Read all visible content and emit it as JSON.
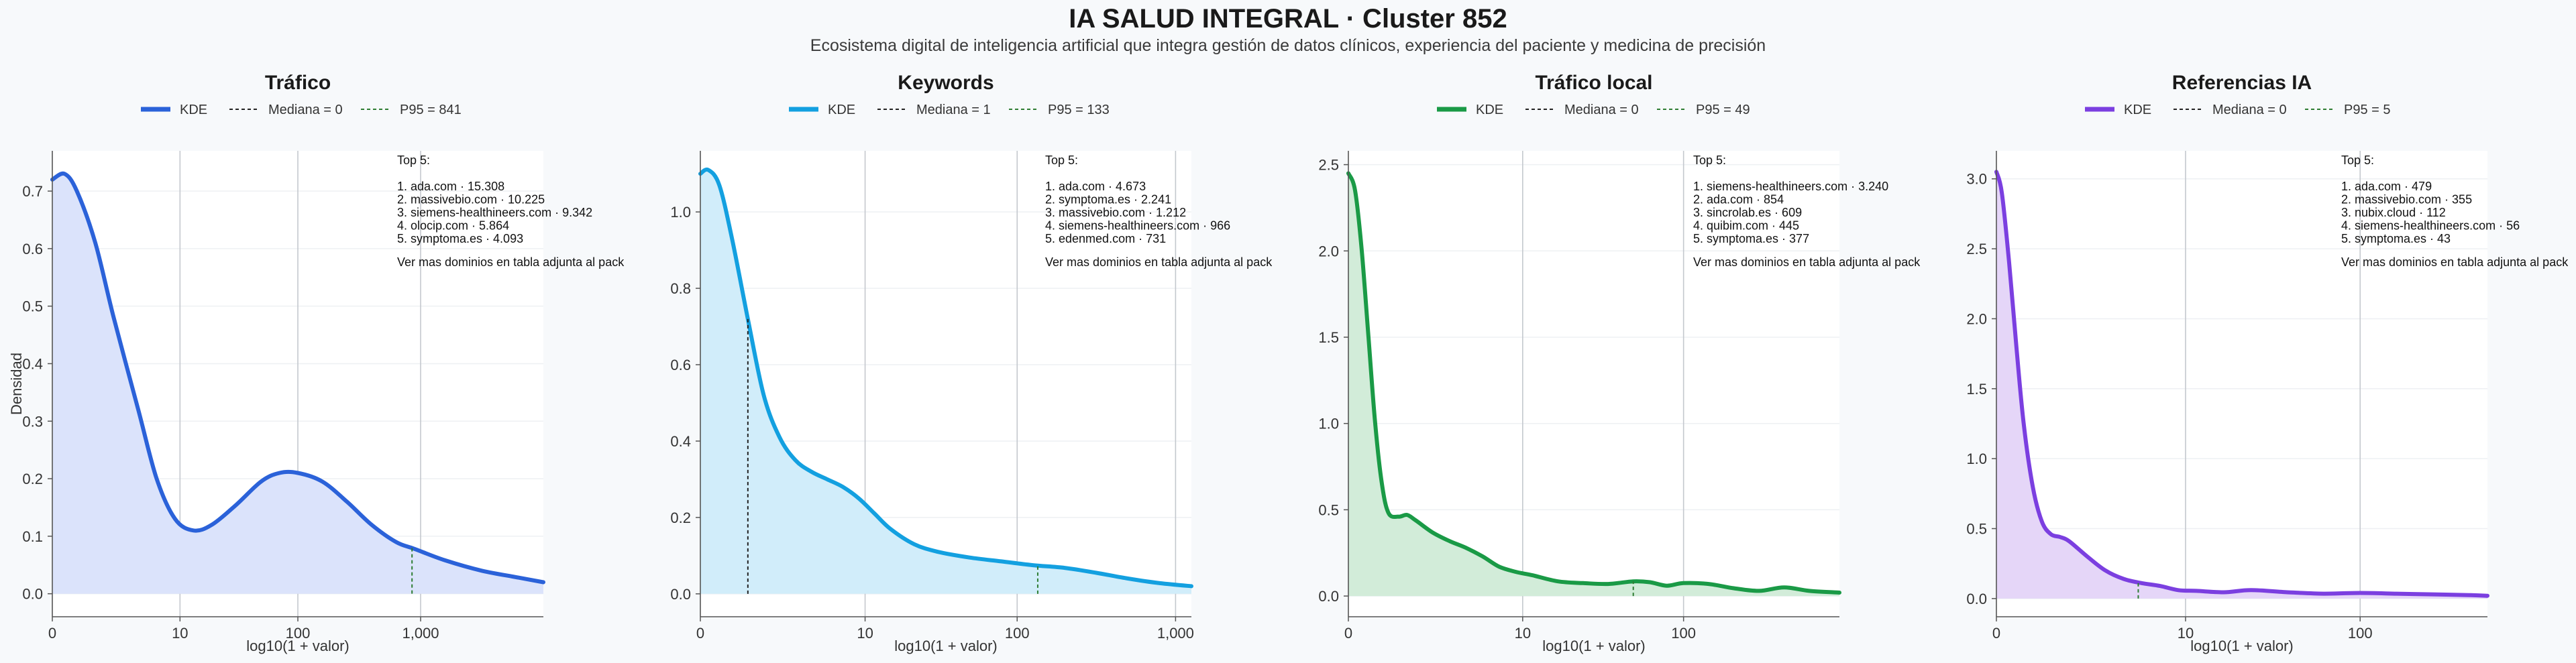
{
  "title": "IA SALUD INTEGRAL · Cluster 852",
  "subtitle": "Ecosistema digital de inteligencia artificial que integra gestión de datos clínicos, experiencia del paciente y medicina de precisión",
  "chart_data": [
    {
      "type": "area",
      "title": "Tráfico",
      "xlabel": "log10(1 + valor)",
      "ylabel": "Densidad",
      "color": "#2b62d9",
      "fill": "#dbe3fb",
      "x_scale": "log10(1 + valor)",
      "xlim": [
        0,
        4.0
      ],
      "ylim": [
        -0.04,
        0.77
      ],
      "x_ticks": [
        {
          "label": "0",
          "value": 0
        },
        {
          "label": "10",
          "value": 1.04
        },
        {
          "label": "100",
          "value": 2.0
        },
        {
          "label": "1,000",
          "value": 3.0
        }
      ],
      "y_ticks": [
        0.0,
        0.1,
        0.2,
        0.3,
        0.4,
        0.5,
        0.6,
        0.7
      ],
      "y_tick_labels": [
        "0.0",
        "0.1",
        "0.2",
        "0.3",
        "0.4",
        "0.5",
        "0.6",
        "0.7"
      ],
      "series": [
        {
          "name": "KDE",
          "x": [
            0,
            0.1,
            0.2,
            0.35,
            0.5,
            0.7,
            0.85,
            1.0,
            1.15,
            1.3,
            1.5,
            1.7,
            1.85,
            2.0,
            2.2,
            2.4,
            2.6,
            2.8,
            2.95,
            3.2,
            3.5,
            3.8,
            4.0
          ],
          "y": [
            0.72,
            0.73,
            0.7,
            0.61,
            0.48,
            0.32,
            0.2,
            0.13,
            0.11,
            0.12,
            0.155,
            0.195,
            0.21,
            0.21,
            0.195,
            0.16,
            0.12,
            0.09,
            0.078,
            0.058,
            0.04,
            0.028,
            0.02
          ]
        }
      ],
      "median": {
        "label": "Mediana = 0",
        "x": 0
      },
      "p95": {
        "label": "P95 = 841",
        "x": 2.93
      },
      "legend": {
        "kde": "KDE",
        "median": "Mediana = 0",
        "p95": "P95 = 841"
      },
      "annotation": {
        "heading": "Top 5:",
        "items": [
          "1. ada.com · 15.308",
          "2. massivebio.com · 10.225",
          "3. siemens-healthineers.com · 9.342",
          "4. olocip.com · 5.864",
          "5. symptoma.es · 4.093"
        ],
        "footer": "Ver mas dominios en tabla adjunta al pack"
      }
    },
    {
      "type": "area",
      "title": "Keywords",
      "xlabel": "log10(1 + valor)",
      "ylabel": "",
      "color": "#13a0e0",
      "fill": "#d1edfa",
      "x_scale": "log10(1 + valor)",
      "xlim": [
        0,
        3.1
      ],
      "ylim": [
        -0.06,
        1.16
      ],
      "x_ticks": [
        {
          "label": "0",
          "value": 0
        },
        {
          "label": "10",
          "value": 1.04
        },
        {
          "label": "100",
          "value": 2.0
        },
        {
          "label": "1,000",
          "value": 3.0
        }
      ],
      "y_ticks": [
        0.0,
        0.2,
        0.4,
        0.6,
        0.8,
        1.0
      ],
      "y_tick_labels": [
        "0.0",
        "0.2",
        "0.4",
        "0.6",
        "0.8",
        "1.0"
      ],
      "series": [
        {
          "name": "KDE",
          "x": [
            0,
            0.05,
            0.12,
            0.2,
            0.3,
            0.4,
            0.5,
            0.6,
            0.7,
            0.8,
            0.9,
            1.0,
            1.1,
            1.2,
            1.35,
            1.5,
            1.7,
            1.9,
            2.1,
            2.3,
            2.5,
            2.7,
            2.9,
            3.1
          ],
          "y": [
            1.1,
            1.11,
            1.07,
            0.93,
            0.72,
            0.52,
            0.41,
            0.35,
            0.32,
            0.3,
            0.28,
            0.25,
            0.21,
            0.17,
            0.13,
            0.11,
            0.095,
            0.085,
            0.075,
            0.068,
            0.055,
            0.04,
            0.028,
            0.02
          ]
        }
      ],
      "median": {
        "label": "Mediana = 1",
        "x": 0.3
      },
      "p95": {
        "label": "P95 = 133",
        "x": 2.13
      },
      "legend": {
        "kde": "KDE",
        "median": "Mediana = 1",
        "p95": "P95 = 133"
      },
      "annotation": {
        "heading": "Top 5:",
        "items": [
          "1. ada.com · 4.673",
          "2. symptoma.es · 2.241",
          "3. massivebio.com · 1.212",
          "4. siemens-healthineers.com · 966",
          "5. edenmed.com · 731"
        ],
        "footer": "Ver mas dominios en tabla adjunta al pack"
      }
    },
    {
      "type": "area",
      "title": "Tráfico local",
      "xlabel": "log10(1 + valor)",
      "ylabel": "",
      "color": "#1a9a46",
      "fill": "#d2ecd9",
      "x_scale": "log10(1 + valor)",
      "xlim": [
        0,
        2.93
      ],
      "ylim": [
        -0.12,
        2.58
      ],
      "x_ticks": [
        {
          "label": "0",
          "value": 0
        },
        {
          "label": "10",
          "value": 1.04
        },
        {
          "label": "100",
          "value": 2.0
        }
      ],
      "y_ticks": [
        0.0,
        0.5,
        1.0,
        1.5,
        2.0,
        2.5
      ],
      "y_tick_labels": [
        "0.0",
        "0.5",
        "1.0",
        "1.5",
        "2.0",
        "2.5"
      ],
      "series": [
        {
          "name": "KDE",
          "x": [
            0,
            0.04,
            0.08,
            0.12,
            0.16,
            0.2,
            0.24,
            0.3,
            0.35,
            0.4,
            0.5,
            0.6,
            0.7,
            0.8,
            0.9,
            1.0,
            1.1,
            1.25,
            1.4,
            1.55,
            1.7,
            1.8,
            1.9,
            2.0,
            2.15,
            2.3,
            2.45,
            2.6,
            2.75,
            2.93
          ],
          "y": [
            2.45,
            2.35,
            2.0,
            1.5,
            1.0,
            0.65,
            0.48,
            0.46,
            0.47,
            0.44,
            0.37,
            0.32,
            0.28,
            0.23,
            0.17,
            0.14,
            0.12,
            0.085,
            0.075,
            0.07,
            0.085,
            0.08,
            0.06,
            0.075,
            0.07,
            0.045,
            0.03,
            0.05,
            0.03,
            0.02
          ]
        }
      ],
      "median": {
        "label": "Mediana = 0",
        "x": 0
      },
      "p95": {
        "label": "P95 = 49",
        "x": 1.7
      },
      "legend": {
        "kde": "KDE",
        "median": "Mediana = 0",
        "p95": "P95 = 49"
      },
      "annotation": {
        "heading": "Top 5:",
        "items": [
          "1. siemens-healthineers.com · 3.240",
          "2. ada.com · 854",
          "3. sincrolab.es · 609",
          "4. quibim.com · 445",
          "5. symptoma.es · 377"
        ],
        "footer": "Ver mas dominios en tabla adjunta al pack"
      }
    },
    {
      "type": "area",
      "title": "Referencias IA",
      "xlabel": "log10(1 + valor)",
      "ylabel": "",
      "color": "#7b3fe0",
      "fill": "#e5d6f8",
      "x_scale": "log10(1 + valor)",
      "xlim": [
        0,
        2.7
      ],
      "ylim": [
        -0.13,
        3.2
      ],
      "x_ticks": [
        {
          "label": "0",
          "value": 0
        },
        {
          "label": "10",
          "value": 1.04
        },
        {
          "label": "100",
          "value": 2.0
        }
      ],
      "y_ticks": [
        0.0,
        0.5,
        1.0,
        1.5,
        2.0,
        2.5,
        3.0
      ],
      "y_tick_labels": [
        "0.0",
        "0.5",
        "1.0",
        "1.5",
        "2.0",
        "2.5",
        "3.0"
      ],
      "series": [
        {
          "name": "KDE",
          "x": [
            0,
            0.03,
            0.07,
            0.11,
            0.15,
            0.2,
            0.25,
            0.3,
            0.35,
            0.4,
            0.5,
            0.6,
            0.7,
            0.8,
            0.9,
            1.0,
            1.1,
            1.25,
            1.4,
            1.6,
            1.8,
            2.0,
            2.2,
            2.4,
            2.6,
            2.7
          ],
          "y": [
            3.05,
            2.9,
            2.4,
            1.8,
            1.25,
            0.8,
            0.55,
            0.46,
            0.44,
            0.41,
            0.3,
            0.2,
            0.14,
            0.11,
            0.09,
            0.06,
            0.055,
            0.045,
            0.06,
            0.045,
            0.035,
            0.04,
            0.035,
            0.03,
            0.025,
            0.02
          ]
        }
      ],
      "median": {
        "label": "Mediana = 0",
        "x": 0
      },
      "p95": {
        "label": "P95 = 5",
        "x": 0.78
      },
      "legend": {
        "kde": "KDE",
        "median": "Mediana = 0",
        "p95": "P95 = 5"
      },
      "annotation": {
        "heading": "Top 5:",
        "items": [
          "1. ada.com · 479",
          "2. massivebio.com · 355",
          "3. nubix.cloud · 112",
          "4. siemens-healthineers.com · 56",
          "5. symptoma.es · 43"
        ],
        "footer": "Ver mas dominios en tabla adjunta al pack"
      }
    }
  ]
}
